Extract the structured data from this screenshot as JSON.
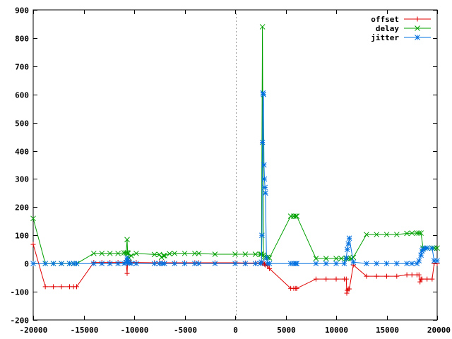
{
  "chart_data": {
    "type": "line",
    "title": "",
    "xlabel": "",
    "ylabel": "",
    "xlim": [
      -20000,
      20000
    ],
    "ylim": [
      -200,
      900
    ],
    "x_ticks": [
      -20000,
      -15000,
      -10000,
      -5000,
      0,
      5000,
      10000,
      15000,
      20000
    ],
    "y_ticks": [
      -200,
      -100,
      0,
      100,
      200,
      300,
      400,
      500,
      600,
      700,
      800,
      900
    ],
    "x_tick_labels": [
      "-20000",
      "-15000",
      "-10000",
      "-5000",
      "0",
      "5000",
      "10000",
      "15000",
      "20000"
    ],
    "y_tick_labels": [
      "-200",
      "-100",
      "0",
      "100",
      "200",
      "300",
      "400",
      "500",
      "600",
      "700",
      "800",
      "900"
    ],
    "zero_line": "x = 0, dotted",
    "grid": false,
    "legend_position": "top-right",
    "series": [
      {
        "name": "offset",
        "color": "#e00000",
        "marker": "plus",
        "points": [
          [
            -20000,
            68
          ],
          [
            -18800,
            -82
          ],
          [
            -18000,
            -82
          ],
          [
            -17200,
            -82
          ],
          [
            -16400,
            -82
          ],
          [
            -16000,
            -82
          ],
          [
            -15700,
            -82
          ],
          [
            -14000,
            4
          ],
          [
            -13200,
            4
          ],
          [
            -12400,
            4
          ],
          [
            -11600,
            4
          ],
          [
            -11000,
            4
          ],
          [
            -10800,
            4
          ],
          [
            -10700,
            -35
          ],
          [
            -10650,
            5
          ],
          [
            -10600,
            5
          ],
          [
            -10500,
            5
          ],
          [
            -10400,
            4
          ],
          [
            -10300,
            4
          ],
          [
            -9800,
            4
          ],
          [
            -8000,
            3
          ],
          [
            -7500,
            3
          ],
          [
            -7200,
            3
          ],
          [
            -7000,
            3
          ],
          [
            -6000,
            3
          ],
          [
            -5000,
            3
          ],
          [
            -4000,
            3
          ],
          [
            -3600,
            3
          ],
          [
            -2000,
            3
          ],
          [
            0,
            3
          ],
          [
            1000,
            2
          ],
          [
            2000,
            2
          ],
          [
            2500,
            2
          ],
          [
            2700,
            2
          ],
          [
            2800,
            0
          ],
          [
            2900,
            -2
          ],
          [
            3000,
            -5
          ],
          [
            3200,
            -8
          ],
          [
            3400,
            -18
          ],
          [
            5500,
            -88
          ],
          [
            5800,
            -88
          ],
          [
            6000,
            -88
          ],
          [
            6100,
            -88
          ],
          [
            8000,
            -55
          ],
          [
            9000,
            -55
          ],
          [
            10000,
            -55
          ],
          [
            10800,
            -55
          ],
          [
            11000,
            -55
          ],
          [
            11050,
            -105
          ],
          [
            11100,
            -95
          ],
          [
            11200,
            -90
          ],
          [
            11300,
            -90
          ],
          [
            11700,
            -5
          ],
          [
            13000,
            -45
          ],
          [
            14000,
            -45
          ],
          [
            15000,
            -45
          ],
          [
            16000,
            -45
          ],
          [
            17000,
            -40
          ],
          [
            17500,
            -40
          ],
          [
            18000,
            -40
          ],
          [
            18200,
            -40
          ],
          [
            18300,
            -65
          ],
          [
            18400,
            -55
          ],
          [
            18500,
            -55
          ],
          [
            19000,
            -55
          ],
          [
            19500,
            -55
          ],
          [
            19700,
            0
          ],
          [
            20000,
            0
          ]
        ]
      },
      {
        "name": "delay",
        "color": "#00a000",
        "marker": "cross",
        "points": [
          [
            -20000,
            160
          ],
          [
            -18800,
            0
          ],
          [
            -18000,
            0
          ],
          [
            -17200,
            0
          ],
          [
            -16400,
            0
          ],
          [
            -16000,
            0
          ],
          [
            -15700,
            0
          ],
          [
            -14000,
            36
          ],
          [
            -13200,
            36
          ],
          [
            -12400,
            36
          ],
          [
            -11600,
            36
          ],
          [
            -11000,
            38
          ],
          [
            -10800,
            38
          ],
          [
            -10700,
            85
          ],
          [
            -10650,
            38
          ],
          [
            -10600,
            36
          ],
          [
            -10500,
            20
          ],
          [
            -10300,
            28
          ],
          [
            -9800,
            36
          ],
          [
            -8000,
            32
          ],
          [
            -7500,
            32
          ],
          [
            -7300,
            22
          ],
          [
            -7100,
            28
          ],
          [
            -7000,
            28
          ],
          [
            -6500,
            35
          ],
          [
            -6000,
            36
          ],
          [
            -5000,
            36
          ],
          [
            -4000,
            36
          ],
          [
            -3600,
            36
          ],
          [
            -2000,
            33
          ],
          [
            0,
            33
          ],
          [
            1000,
            33
          ],
          [
            2000,
            33
          ],
          [
            2500,
            33
          ],
          [
            2600,
            33
          ],
          [
            2700,
            840
          ],
          [
            2800,
            30
          ],
          [
            2900,
            25
          ],
          [
            3000,
            22
          ],
          [
            3200,
            22
          ],
          [
            3400,
            20
          ],
          [
            5500,
            168
          ],
          [
            5800,
            168
          ],
          [
            6000,
            168
          ],
          [
            6100,
            168
          ],
          [
            8000,
            18
          ],
          [
            9000,
            18
          ],
          [
            10000,
            18
          ],
          [
            10500,
            18
          ],
          [
            11000,
            18
          ],
          [
            11200,
            18
          ],
          [
            11500,
            18
          ],
          [
            11700,
            22
          ],
          [
            13000,
            103
          ],
          [
            14000,
            103
          ],
          [
            15000,
            103
          ],
          [
            16000,
            103
          ],
          [
            17000,
            107
          ],
          [
            17500,
            108
          ],
          [
            18000,
            108
          ],
          [
            18200,
            108
          ],
          [
            18400,
            108
          ],
          [
            18600,
            55
          ],
          [
            19000,
            55
          ],
          [
            19500,
            55
          ],
          [
            19700,
            55
          ],
          [
            20000,
            55
          ]
        ]
      },
      {
        "name": "jitter",
        "color": "#0070e0",
        "marker": "star",
        "points": [
          [
            -20000,
            0
          ],
          [
            -18800,
            0
          ],
          [
            -18000,
            0
          ],
          [
            -17200,
            0
          ],
          [
            -16400,
            0
          ],
          [
            -16000,
            0
          ],
          [
            -15700,
            0
          ],
          [
            -14000,
            0
          ],
          [
            -13200,
            0
          ],
          [
            -12400,
            0
          ],
          [
            -11600,
            0
          ],
          [
            -11000,
            0
          ],
          [
            -10800,
            4
          ],
          [
            -10700,
            20
          ],
          [
            -10650,
            10
          ],
          [
            -10600,
            5
          ],
          [
            -10500,
            2
          ],
          [
            -10300,
            0
          ],
          [
            -9800,
            0
          ],
          [
            -8000,
            0
          ],
          [
            -7500,
            0
          ],
          [
            -7200,
            0
          ],
          [
            -7000,
            0
          ],
          [
            -6000,
            0
          ],
          [
            -5000,
            0
          ],
          [
            -4000,
            0
          ],
          [
            -3600,
            0
          ],
          [
            -2000,
            0
          ],
          [
            0,
            0
          ],
          [
            1000,
            0
          ],
          [
            2000,
            0
          ],
          [
            2500,
            0
          ],
          [
            2600,
            5
          ],
          [
            2650,
            100
          ],
          [
            2700,
            430
          ],
          [
            2750,
            605
          ],
          [
            2800,
            600
          ],
          [
            2850,
            350
          ],
          [
            2900,
            300
          ],
          [
            2950,
            270
          ],
          [
            3000,
            250
          ],
          [
            3100,
            20
          ],
          [
            3200,
            0
          ],
          [
            3400,
            0
          ],
          [
            5500,
            0
          ],
          [
            5800,
            0
          ],
          [
            6000,
            0
          ],
          [
            6100,
            0
          ],
          [
            8000,
            0
          ],
          [
            9000,
            0
          ],
          [
            10000,
            0
          ],
          [
            10800,
            0
          ],
          [
            11000,
            20
          ],
          [
            11100,
            50
          ],
          [
            11200,
            70
          ],
          [
            11300,
            90
          ],
          [
            11700,
            5
          ],
          [
            13000,
            0
          ],
          [
            14000,
            0
          ],
          [
            15000,
            0
          ],
          [
            16000,
            0
          ],
          [
            17000,
            0
          ],
          [
            17500,
            0
          ],
          [
            18000,
            0
          ],
          [
            18200,
            10
          ],
          [
            18400,
            30
          ],
          [
            18500,
            45
          ],
          [
            18600,
            50
          ],
          [
            18800,
            55
          ],
          [
            19000,
            55
          ],
          [
            19500,
            55
          ],
          [
            19700,
            10
          ],
          [
            20000,
            10
          ]
        ]
      }
    ]
  }
}
